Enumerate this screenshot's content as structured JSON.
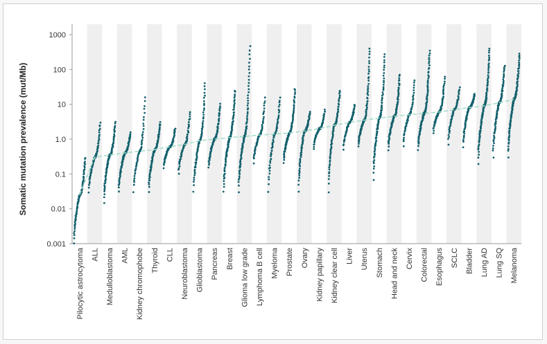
{
  "chart_data": {
    "type": "scatter",
    "title": "",
    "xlabel": "",
    "ylabel": "Somatic mutation prevalence (mut/Mb)",
    "yscale": "log",
    "ylim": [
      0.001,
      1000
    ],
    "yticks": [
      "0.001",
      "0.01",
      "0.1",
      "1.0",
      "10",
      "100",
      "1000"
    ],
    "grid": false,
    "alternating_bands": true,
    "colors": {
      "point": "#13606c",
      "median": "#9fdcc8",
      "band": "#efefef"
    },
    "categories": [
      "Pilocytic astrocytoma",
      "ALL",
      "Medulloblastoma",
      "AML",
      "Kidney chromophobe",
      "Thyroid",
      "CLL",
      "Neuroblastoma",
      "Glioblastoma",
      "Pancreas",
      "Breast",
      "Glioma low grade",
      "Lymphoma B cell",
      "Myeloma",
      "Prostate",
      "Ovary",
      "Kidney papillary",
      "Kidney clear cell",
      "Liver",
      "Uterus",
      "Stomach",
      "Head and neck",
      "Cervix",
      "Colorectal",
      "Esophagus",
      "SCLC",
      "Bladder",
      "Lung AD",
      "Lung SQ",
      "Melanoma"
    ],
    "series": [
      {
        "category": "Pilocytic astrocytoma",
        "n": 90,
        "min": 0.001,
        "max": 0.3,
        "median": 0.025
      },
      {
        "category": "ALL",
        "n": 70,
        "min": 0.03,
        "max": 3,
        "median": 0.3
      },
      {
        "category": "Medulloblastoma",
        "n": 90,
        "min": 0.015,
        "max": 3,
        "median": 0.35
      },
      {
        "category": "AML",
        "n": 100,
        "min": 0.03,
        "max": 1.5,
        "median": 0.4
      },
      {
        "category": "Kidney chromophobe",
        "n": 55,
        "min": 0.03,
        "max": 16,
        "median": 0.45
      },
      {
        "category": "Thyroid",
        "n": 95,
        "min": 0.03,
        "max": 3,
        "median": 0.5
      },
      {
        "category": "CLL",
        "n": 70,
        "min": 0.15,
        "max": 2,
        "median": 0.6
      },
      {
        "category": "Neuroblastoma",
        "n": 65,
        "min": 0.1,
        "max": 6,
        "median": 0.7
      },
      {
        "category": "Glioblastoma",
        "n": 80,
        "min": 0.03,
        "max": 40,
        "median": 0.9
      },
      {
        "category": "Pancreas",
        "n": 90,
        "min": 0.15,
        "max": 10,
        "median": 1.0
      },
      {
        "category": "Breast",
        "n": 110,
        "min": 0.03,
        "max": 25,
        "median": 1.1
      },
      {
        "category": "Glioma low grade",
        "n": 95,
        "min": 0.03,
        "max": 450,
        "median": 1.2
      },
      {
        "category": "Lymphoma B cell",
        "n": 60,
        "min": 0.2,
        "max": 15,
        "median": 1.3
      },
      {
        "category": "Myeloma",
        "n": 65,
        "min": 0.03,
        "max": 15,
        "median": 1.4
      },
      {
        "category": "Prostate",
        "n": 100,
        "min": 0.2,
        "max": 28,
        "median": 1.5
      },
      {
        "category": "Ovary",
        "n": 90,
        "min": 0.03,
        "max": 6,
        "median": 1.7
      },
      {
        "category": "Kidney papillary",
        "n": 65,
        "min": 0.5,
        "max": 7,
        "median": 2.0
      },
      {
        "category": "Kidney clear cell",
        "n": 85,
        "min": 0.03,
        "max": 25,
        "median": 2.5
      },
      {
        "category": "Liver",
        "n": 70,
        "min": 0.5,
        "max": 10,
        "median": 3.0
      },
      {
        "category": "Uterus",
        "n": 100,
        "min": 0.6,
        "max": 400,
        "median": 3.5
      },
      {
        "category": "Stomach",
        "n": 95,
        "min": 0.07,
        "max": 280,
        "median": 4.0
      },
      {
        "category": "Head and neck",
        "n": 110,
        "min": 0.5,
        "max": 70,
        "median": 4.5
      },
      {
        "category": "Cervix",
        "n": 55,
        "min": 0.6,
        "max": 50,
        "median": 5.0
      },
      {
        "category": "Colorectal",
        "n": 120,
        "min": 0.5,
        "max": 350,
        "median": 5.5
      },
      {
        "category": "Esophagus",
        "n": 75,
        "min": 1.5,
        "max": 60,
        "median": 6.0
      },
      {
        "category": "SCLC",
        "n": 65,
        "min": 0.7,
        "max": 30,
        "median": 7.0
      },
      {
        "category": "Bladder",
        "n": 90,
        "min": 0.6,
        "max": 20,
        "median": 8.0
      },
      {
        "category": "Lung AD",
        "n": 115,
        "min": 0.2,
        "max": 400,
        "median": 9.0
      },
      {
        "category": "Lung SQ",
        "n": 95,
        "min": 0.3,
        "max": 130,
        "median": 11.0
      },
      {
        "category": "Melanoma",
        "n": 120,
        "min": 0.3,
        "max": 280,
        "median": 14.0
      }
    ]
  }
}
